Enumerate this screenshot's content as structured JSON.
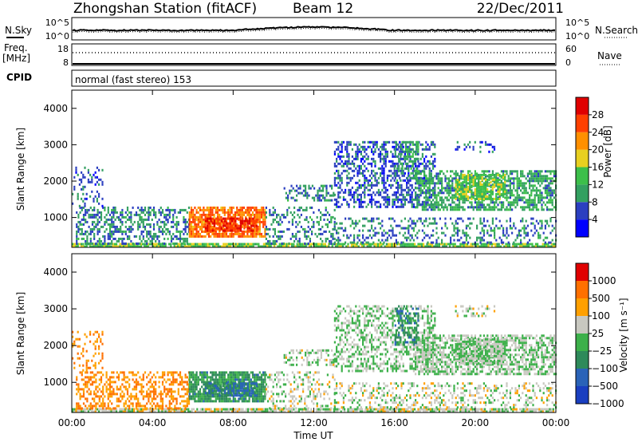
{
  "header": {
    "station": "Zhongshan Station (fitACF)",
    "beam": "Beam 12",
    "date": "22/Dec/2011"
  },
  "sky_panel": {
    "left_label": "N.Sky",
    "right_label": "N.Search",
    "left_ticks": [
      "10^5",
      "10^0"
    ],
    "right_ticks": [
      "10^5",
      "10^0"
    ]
  },
  "freq_panel": {
    "left_label_1": "Freq.",
    "left_label_2": "[MHz]",
    "right_label": "Nave",
    "left_ticks": [
      "18",
      "8"
    ],
    "right_ticks": [
      "60",
      "0"
    ]
  },
  "cpid_panel": {
    "label": "CPID",
    "mode_text": "normal (fast stereo) 153"
  },
  "power_panel": {
    "ylabel": "Slant Range [km]",
    "colorbar_label": "Power [dB]",
    "colorbar_ticks": [
      "28",
      "24",
      "20",
      "16",
      "12",
      "8",
      "4"
    ],
    "colors": [
      "#0000ff",
      "#2b3fc0",
      "#33a060",
      "#3cbf4a",
      "#e8d020",
      "#ff9000",
      "#ff4000",
      "#e00000"
    ]
  },
  "velocity_panel": {
    "ylabel": "Slant Range [km]",
    "colorbar_label": "Velocity [m s⁻¹]",
    "colorbar_ticks": [
      "1000",
      "500",
      "100",
      "25",
      "−25",
      "−100",
      "−500",
      "−1000"
    ],
    "colors": [
      "#1a3fc0",
      "#2a63b8",
      "#2e8a5a",
      "#3cb04a",
      "#c8c8c0",
      "#ffa000",
      "#ff7000",
      "#e00000"
    ]
  },
  "xaxis": {
    "label": "Time UT",
    "ticks": [
      "00:00",
      "04:00",
      "08:00",
      "12:00",
      "16:00",
      "20:00",
      "00:00"
    ]
  },
  "chart_data": {
    "type": "heatmap",
    "title": "Zhongshan Station (fitACF)   Beam 12   22/Dec/2011",
    "xlabel": "Time UT",
    "ylabel": "Slant Range [km]",
    "x_range": [
      "00:00",
      "24:00"
    ],
    "ylim": [
      180,
      4500
    ],
    "y_ticks": [
      1000,
      2000,
      3000,
      4000
    ],
    "panels": [
      {
        "name": "Power",
        "units": "dB",
        "scale": [
          0,
          30
        ],
        "ticks": [
          4,
          8,
          12,
          16,
          20,
          24,
          28
        ]
      },
      {
        "name": "Velocity",
        "units": "m s-1",
        "scale": [
          -1000,
          1000
        ],
        "ticks": [
          1000,
          500,
          100,
          25,
          -25,
          -100,
          -500,
          -1000
        ]
      }
    ],
    "regions": [
      {
        "t0": 0.0,
        "t1": 24.0,
        "r0": 180,
        "r1": 300,
        "power": 14,
        "velocity": 100,
        "density": 0.85
      },
      {
        "t0": 0.2,
        "t1": 5.8,
        "r0": 300,
        "r1": 1300,
        "power": 8,
        "velocity": 500,
        "density": 0.45
      },
      {
        "t0": 0.0,
        "t1": 1.5,
        "r0": 1300,
        "r1": 2400,
        "power": 6,
        "velocity": 500,
        "density": 0.25
      },
      {
        "t0": 5.8,
        "t1": 9.6,
        "r0": 500,
        "r1": 1300,
        "power": 22,
        "velocity": -300,
        "density": 0.8
      },
      {
        "t0": 6.6,
        "t1": 9.2,
        "r0": 650,
        "r1": 1000,
        "power": 26,
        "velocity": -500,
        "density": 0.7
      },
      {
        "t0": 9.6,
        "t1": 13.0,
        "r0": 300,
        "r1": 1300,
        "power": 8,
        "velocity": 100,
        "density": 0.3
      },
      {
        "t0": 10.5,
        "t1": 13.0,
        "r0": 1500,
        "r1": 1900,
        "power": 8,
        "velocity": 25,
        "density": 0.4
      },
      {
        "t0": 13.0,
        "t1": 18.0,
        "r0": 1300,
        "r1": 3100,
        "power": 6,
        "velocity": 0,
        "density": 0.45
      },
      {
        "t0": 16.0,
        "t1": 17.2,
        "r0": 2000,
        "r1": 3100,
        "power": 10,
        "velocity": -400,
        "density": 0.5
      },
      {
        "t0": 17.0,
        "t1": 24.0,
        "r0": 1200,
        "r1": 2300,
        "power": 10,
        "velocity": 0,
        "density": 0.6
      },
      {
        "t0": 19.0,
        "t1": 21.5,
        "r0": 1500,
        "r1": 2200,
        "power": 14,
        "velocity": 0,
        "density": 0.75
      },
      {
        "t0": 13.0,
        "t1": 24.0,
        "r0": 300,
        "r1": 1000,
        "power": 8,
        "velocity": 100,
        "density": 0.3
      },
      {
        "t0": 19.0,
        "t1": 21.0,
        "r0": 2800,
        "r1": 3100,
        "power": 6,
        "velocity": 100,
        "density": 0.3
      }
    ]
  }
}
